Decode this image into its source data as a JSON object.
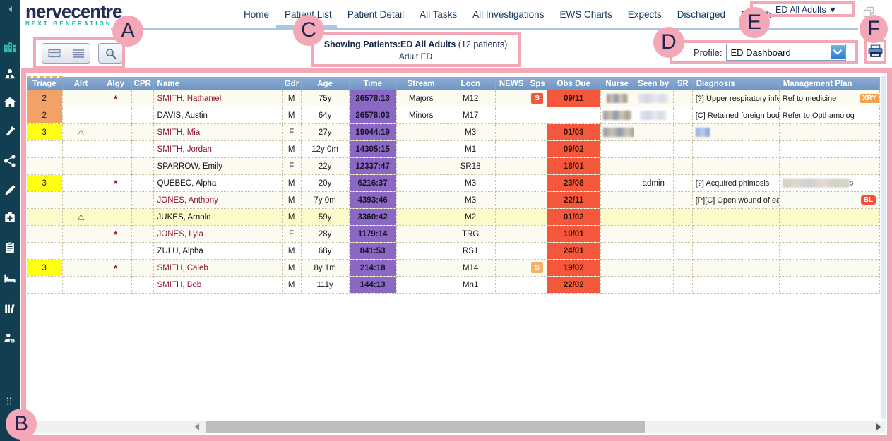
{
  "brand": {
    "logo": "nervecentre",
    "tagline": "NEXT GENERATION E"
  },
  "nav": {
    "items": [
      "Home",
      "Patient List",
      "Patient Detail",
      "All Tasks",
      "All Investigations",
      "EWS Charts",
      "Expects",
      "Discharged",
      "Search"
    ],
    "active_item": "Patient List",
    "scope_selector": "ED All Adults ▼"
  },
  "toolbar": {
    "buttons": [
      "two-row-view-icon",
      "list-view-icon",
      "magnifier-icon"
    ]
  },
  "summary": {
    "title_bold": "Showing Patients:ED All Adults",
    "title_suffix": " (12 patients)",
    "subtitle": "Adult ED"
  },
  "profile": {
    "label": "Profile:",
    "value": "ED Dashboard"
  },
  "annotations": [
    "A",
    "B",
    "C",
    "D",
    "E",
    "F"
  ],
  "sidebar": {
    "icons": [
      "collapse-icon",
      "hospital-icon",
      "clinician-icon",
      "community-visit-icon",
      "specimen-icon",
      "network-icon",
      "pen-icon",
      "medication-icon",
      "clipboard-icon",
      "bed-icon",
      "ward-library-icon",
      "user-settings-icon",
      "more-icon"
    ]
  },
  "table": {
    "columns": [
      "Triage",
      "Alrt",
      "Algy",
      "CPR",
      "Name",
      "Gdr",
      "Age",
      "Time",
      "Stream",
      "Locn",
      "NEWS",
      "Sps",
      "Obs Due",
      "Nurse",
      "Seen by",
      "SR",
      "Diagnosis",
      "Management Plan",
      ""
    ],
    "rows": [
      {
        "triage": "2",
        "triage_level": "p2",
        "alert": false,
        "allergy": true,
        "name": "SMITH, Nathaniel",
        "name_red": true,
        "gdr": "M",
        "age": "75y",
        "time": "26578:13",
        "stream": "Majors",
        "locn": "M12",
        "news": "",
        "sps": "S",
        "sps_level": "red",
        "obs_due": "09/11",
        "nurse_redacted": 30,
        "seen_by": "",
        "seen_redacted": 42,
        "sr": "",
        "diagnosis": "[?] Upper respiratory infe",
        "diagnosis_redacted": 0,
        "mgmt": "Ref to medicine",
        "mgmt_redacted": 0,
        "mgmt_suffix": "",
        "badge": "XRY",
        "badge_level": "orange",
        "highlight": false
      },
      {
        "triage": "2",
        "triage_level": "p2",
        "alert": false,
        "allergy": false,
        "name": "DAVIS, Austin",
        "name_red": false,
        "gdr": "M",
        "age": "64y",
        "time": "26578:03",
        "stream": "Minors",
        "locn": "M17",
        "news": "",
        "sps": "",
        "sps_level": "",
        "obs_due": "",
        "nurse_redacted": 40,
        "seen_by": "",
        "seen_redacted": 38,
        "sr": "",
        "diagnosis": "[C] Retained foreign bod",
        "diagnosis_redacted": 0,
        "mgmt": "Refer to Opthamolog",
        "mgmt_redacted": 0,
        "mgmt_suffix": "",
        "badge": "",
        "badge_level": "",
        "highlight": false
      },
      {
        "triage": "3",
        "triage_level": "p3",
        "alert": true,
        "allergy": false,
        "name": "SMITH, Mia",
        "name_red": true,
        "gdr": "F",
        "age": "27y",
        "time": "19044:19",
        "stream": "",
        "locn": "M3",
        "news": "",
        "sps": "",
        "sps_level": "",
        "obs_due": "01/03",
        "nurse_redacted": 52,
        "seen_by": "",
        "seen_redacted": 0,
        "sr": "",
        "diagnosis": "",
        "diagnosis_redacted": 20,
        "mgmt": "",
        "mgmt_redacted": 0,
        "mgmt_suffix": "",
        "badge": "",
        "badge_level": "",
        "highlight": false
      },
      {
        "triage": "",
        "triage_level": "",
        "alert": false,
        "allergy": false,
        "name": "SMITH, Jordan",
        "name_red": true,
        "gdr": "M",
        "age": "12y 0m",
        "time": "14305:15",
        "stream": "",
        "locn": "M1",
        "news": "",
        "sps": "",
        "sps_level": "",
        "obs_due": "09/02",
        "nurse_redacted": 0,
        "seen_by": "",
        "seen_redacted": 0,
        "sr": "",
        "diagnosis": "",
        "diagnosis_redacted": 0,
        "mgmt": "",
        "mgmt_redacted": 0,
        "mgmt_suffix": "",
        "badge": "",
        "badge_level": "",
        "highlight": false
      },
      {
        "triage": "",
        "triage_level": "",
        "alert": false,
        "allergy": false,
        "name": "SPARROW, Emily",
        "name_red": false,
        "gdr": "F",
        "age": "22y",
        "time": "12337:47",
        "stream": "",
        "locn": "SR18",
        "news": "",
        "sps": "",
        "sps_level": "",
        "obs_due": "18/01",
        "nurse_redacted": 0,
        "seen_by": "",
        "seen_redacted": 0,
        "sr": "",
        "diagnosis": "",
        "diagnosis_redacted": 0,
        "mgmt": "",
        "mgmt_redacted": 0,
        "mgmt_suffix": "",
        "badge": "",
        "badge_level": "",
        "highlight": false
      },
      {
        "triage": "3",
        "triage_level": "p3",
        "alert": false,
        "allergy": true,
        "name": "QUEBEC, Alpha",
        "name_red": false,
        "gdr": "M",
        "age": "20y",
        "time": "6216:37",
        "stream": "",
        "locn": "M3",
        "news": "",
        "sps": "",
        "sps_level": "",
        "obs_due": "23/08",
        "nurse_redacted": 0,
        "seen_by": "admin",
        "seen_redacted": 0,
        "sr": "",
        "diagnosis": "[?] Acquired phimosis",
        "diagnosis_redacted": 0,
        "mgmt": "",
        "mgmt_redacted": 95,
        "mgmt_suffix": "s",
        "badge": "",
        "badge_level": "",
        "highlight": false
      },
      {
        "triage": "",
        "triage_level": "",
        "alert": false,
        "allergy": false,
        "name": "JONES, Anthony",
        "name_red": true,
        "gdr": "M",
        "age": "7y 0m",
        "time": "4393:46",
        "stream": "",
        "locn": "M3",
        "news": "",
        "sps": "",
        "sps_level": "",
        "obs_due": "22/11",
        "nurse_redacted": 0,
        "seen_by": "",
        "seen_redacted": 0,
        "sr": "",
        "diagnosis": "[P][C] Open wound of ea",
        "diagnosis_redacted": 0,
        "mgmt": "",
        "mgmt_redacted": 0,
        "mgmt_suffix": "",
        "badge": "BL",
        "badge_level": "red",
        "highlight": false
      },
      {
        "triage": "",
        "triage_level": "",
        "alert": true,
        "allergy": false,
        "name": "JUKES, Arnold",
        "name_red": false,
        "gdr": "M",
        "age": "59y",
        "time": "3360:42",
        "stream": "",
        "locn": "M2",
        "news": "",
        "sps": "",
        "sps_level": "",
        "obs_due": "01/02",
        "nurse_redacted": 0,
        "seen_by": "",
        "seen_redacted": 0,
        "sr": "",
        "diagnosis": "",
        "diagnosis_redacted": 0,
        "mgmt": "",
        "mgmt_redacted": 0,
        "mgmt_suffix": "",
        "badge": "",
        "badge_level": "",
        "highlight": true
      },
      {
        "triage": "",
        "triage_level": "",
        "alert": false,
        "allergy": true,
        "name": "JONES, Lyla",
        "name_red": true,
        "gdr": "F",
        "age": "28y",
        "time": "1179:14",
        "stream": "",
        "locn": "TRG",
        "news": "",
        "sps": "",
        "sps_level": "",
        "obs_due": "10/01",
        "nurse_redacted": 0,
        "seen_by": "",
        "seen_redacted": 0,
        "sr": "",
        "diagnosis": "",
        "diagnosis_redacted": 0,
        "mgmt": "",
        "mgmt_redacted": 0,
        "mgmt_suffix": "",
        "badge": "",
        "badge_level": "",
        "highlight": false
      },
      {
        "triage": "",
        "triage_level": "",
        "alert": false,
        "allergy": false,
        "name": "ZULU, Alpha",
        "name_red": false,
        "gdr": "M",
        "age": "68y",
        "time": "841:53",
        "stream": "",
        "locn": "RS1",
        "news": "",
        "sps": "",
        "sps_level": "",
        "obs_due": "24/01",
        "nurse_redacted": 0,
        "seen_by": "",
        "seen_redacted": 0,
        "sr": "",
        "diagnosis": "",
        "diagnosis_redacted": 0,
        "mgmt": "",
        "mgmt_redacted": 0,
        "mgmt_suffix": "",
        "badge": "",
        "badge_level": "",
        "highlight": false
      },
      {
        "triage": "3",
        "triage_level": "p3",
        "alert": false,
        "allergy": true,
        "name": "SMITH, Caleb",
        "name_red": true,
        "gdr": "M",
        "age": "8y 1m",
        "time": "214:18",
        "stream": "",
        "locn": "M14",
        "news": "",
        "sps": "S",
        "sps_level": "orange",
        "obs_due": "19/02",
        "nurse_redacted": 0,
        "seen_by": "",
        "seen_redacted": 0,
        "sr": "",
        "diagnosis": "",
        "diagnosis_redacted": 0,
        "mgmt": "",
        "mgmt_redacted": 0,
        "mgmt_suffix": "",
        "badge": "",
        "badge_level": "",
        "highlight": false
      },
      {
        "triage": "",
        "triage_level": "",
        "alert": false,
        "allergy": false,
        "name": "SMITH, Bob",
        "name_red": true,
        "gdr": "M",
        "age": "111y",
        "time": "144:13",
        "stream": "",
        "locn": "Mn1",
        "news": "",
        "sps": "",
        "sps_level": "",
        "obs_due": "22/02",
        "nurse_redacted": 0,
        "seen_by": "",
        "seen_redacted": 0,
        "sr": "",
        "diagnosis": "",
        "diagnosis_redacted": 0,
        "mgmt": "",
        "mgmt_redacted": 0,
        "mgmt_suffix": "",
        "badge": "",
        "badge_level": "",
        "highlight": false
      }
    ]
  },
  "colors": {
    "annotation_pink": "#f3a7b7",
    "header_blue": "#7096c2",
    "time_purple": "#8a68c4",
    "due_red": "#f4573c",
    "triage_orange": "#f2a266",
    "triage_yellow": "#ffff14",
    "row_highlight": "#fbfbc9",
    "name_red": "#8e1537",
    "sidebar_navy": "#123e51",
    "brand_teal": "#13b3a2"
  }
}
